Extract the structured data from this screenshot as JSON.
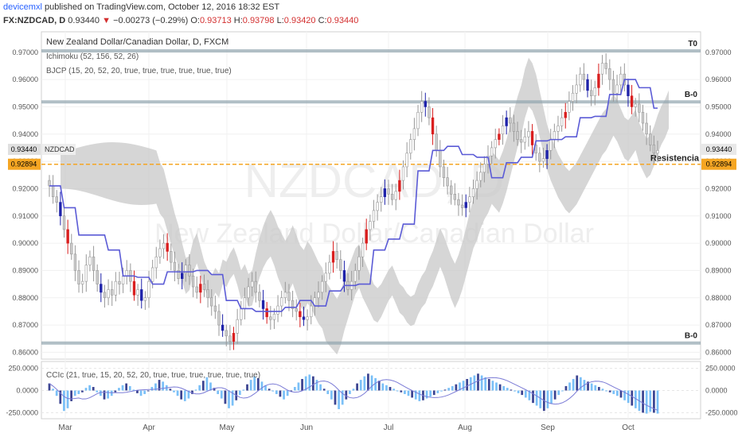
{
  "header": {
    "author": "devicemxl",
    "published": "published on TradingView.com, October 12, 2016 18:32 EST",
    "symbol_line": "FX:NZDCAD, D",
    "last": "0.93440",
    "change": "−0.00273 (−0.29%)",
    "o_label": "O:",
    "o": "0.93713",
    "h_label": "H:",
    "h": "0.93798",
    "l_label": "L:",
    "l": "0.93420",
    "c_label": "C:",
    "c": "0.93440"
  },
  "legend": {
    "title": "New Zealand Dollar/Canadian Dollar, D, FXCM",
    "ichimoku": "Ichimoku (52, 156, 52, 26)",
    "bjcp": "BJCP (15, 20, 52, 20, true, true, true, true, true, true)",
    "ccic": "CCIc (21, true, 15, 20, 52, 20, true, true, true, true, true, true)"
  },
  "watermark": {
    "symbol": "NZDCAD, D",
    "name": "New Zealand Dollar/Canadian Dollar"
  },
  "colors": {
    "up": "#1e22aa",
    "down": "#d91e1e",
    "neutral": "#bdbdbd",
    "cloud": "#c8c8c8",
    "bjcp_line": "#5b5bd6",
    "resistance": "#f5a623",
    "hline": "#90a4ae",
    "cci_up": "#64b5f6",
    "cci_dark": "#1a237e"
  },
  "chart_data": [
    {
      "type": "candlestick",
      "x_labels": [
        "Mar",
        "Apr",
        "May",
        "Jun",
        "Jul",
        "Aug",
        "Sep",
        "Oct"
      ],
      "y_ticks": [
        "0.97000",
        "0.96000",
        "0.95000",
        "0.94000",
        "0.93000",
        "0.92000",
        "0.91000",
        "0.90000",
        "0.89000",
        "0.88000",
        "0.87000",
        "0.86000"
      ],
      "ylim": [
        0.8575,
        0.9775
      ],
      "last_price_label": "0.93440",
      "symbol_tag": "NZDCAD",
      "resistance": {
        "value": 0.92894,
        "label": "0.92894",
        "text": "Resistencia"
      },
      "levels": [
        {
          "value": 0.9705,
          "label": "T0"
        },
        {
          "value": 0.9518,
          "label": "B-0"
        },
        {
          "value": 0.8634,
          "label": "B-0"
        }
      ],
      "closes": [
        0.921,
        0.917,
        0.915,
        0.91,
        0.905,
        0.9,
        0.896,
        0.89,
        0.885,
        0.886,
        0.892,
        0.895,
        0.89,
        0.885,
        0.882,
        0.88,
        0.883,
        0.881,
        0.886,
        0.885,
        0.888,
        0.89,
        0.886,
        0.881,
        0.883,
        0.879,
        0.88,
        0.886,
        0.891,
        0.895,
        0.898,
        0.9,
        0.897,
        0.893,
        0.89,
        0.887,
        0.889,
        0.892,
        0.888,
        0.884,
        0.882,
        0.885,
        0.883,
        0.88,
        0.877,
        0.875,
        0.87,
        0.868,
        0.866,
        0.864,
        0.867,
        0.872,
        0.876,
        0.88,
        0.884,
        0.886,
        0.882,
        0.879,
        0.876,
        0.873,
        0.872,
        0.874,
        0.877,
        0.88,
        0.882,
        0.879,
        0.876,
        0.875,
        0.873,
        0.872,
        0.873,
        0.877,
        0.88,
        0.882,
        0.886,
        0.889,
        0.893,
        0.897,
        0.894,
        0.89,
        0.886,
        0.883,
        0.886,
        0.89,
        0.895,
        0.9,
        0.905,
        0.908,
        0.912,
        0.915,
        0.917,
        0.92,
        0.918,
        0.916,
        0.919,
        0.923,
        0.928,
        0.933,
        0.938,
        0.942,
        0.948,
        0.952,
        0.95,
        0.946,
        0.94,
        0.934,
        0.928,
        0.924,
        0.921,
        0.918,
        0.916,
        0.914,
        0.913,
        0.915,
        0.917,
        0.92,
        0.923,
        0.926,
        0.929,
        0.932,
        0.935,
        0.938,
        0.94,
        0.943,
        0.946,
        0.944,
        0.941,
        0.938,
        0.937,
        0.939,
        0.941,
        0.936,
        0.933,
        0.93,
        0.931,
        0.934,
        0.938,
        0.941,
        0.943,
        0.946,
        0.948,
        0.952,
        0.955,
        0.958,
        0.962,
        0.96,
        0.956,
        0.954,
        0.957,
        0.962,
        0.966,
        0.964,
        0.96,
        0.955,
        0.958,
        0.962,
        0.958,
        0.954,
        0.95,
        0.951,
        0.948,
        0.944,
        0.94,
        0.936,
        0.933,
        0.934
      ]
    },
    {
      "type": "bar",
      "name": "CCIc",
      "y_ticks": [
        "250.0000",
        "0.0000",
        "-250.0000"
      ],
      "ylim": [
        -300,
        300
      ],
      "values": [
        80,
        20,
        -60,
        -150,
        -230,
        -200,
        -120,
        -60,
        -40,
        -20,
        30,
        60,
        40,
        -20,
        -60,
        -100,
        -90,
        -60,
        -20,
        30,
        60,
        80,
        50,
        10,
        -30,
        -60,
        -40,
        0,
        40,
        80,
        120,
        100,
        60,
        20,
        -20,
        -60,
        -100,
        -120,
        -90,
        -40,
        10,
        60,
        110,
        150,
        90,
        30,
        -40,
        -90,
        -150,
        -200,
        -170,
        -110,
        -50,
        10,
        70,
        120,
        160,
        140,
        100,
        60,
        20,
        -10,
        -40,
        -70,
        -100,
        -60,
        -10,
        40,
        90,
        130,
        160,
        180,
        160,
        120,
        70,
        20,
        -40,
        -100,
        -160,
        -210,
        -160,
        -100,
        -40,
        20,
        80,
        120,
        160,
        190,
        170,
        140,
        110,
        80,
        60,
        40,
        20,
        0,
        -20,
        -40,
        -60,
        -80,
        -100,
        -120,
        -110,
        -90,
        -70,
        -50,
        -30,
        -10,
        10,
        30,
        50,
        70,
        90,
        110,
        130,
        150,
        170,
        190,
        170,
        150,
        130,
        110,
        90,
        70,
        50,
        30,
        10,
        -10,
        -30,
        -50,
        -80,
        -110,
        -140,
        -170,
        -200,
        -230,
        -200,
        -150,
        -100,
        -50,
        0,
        50,
        90,
        130,
        170,
        150,
        120,
        100,
        80,
        60,
        40,
        20,
        0,
        -20,
        -40,
        -60,
        -80,
        -110,
        -140,
        -170,
        -200,
        -230,
        -250,
        -260,
        -240,
        -250,
        -260
      ]
    }
  ]
}
